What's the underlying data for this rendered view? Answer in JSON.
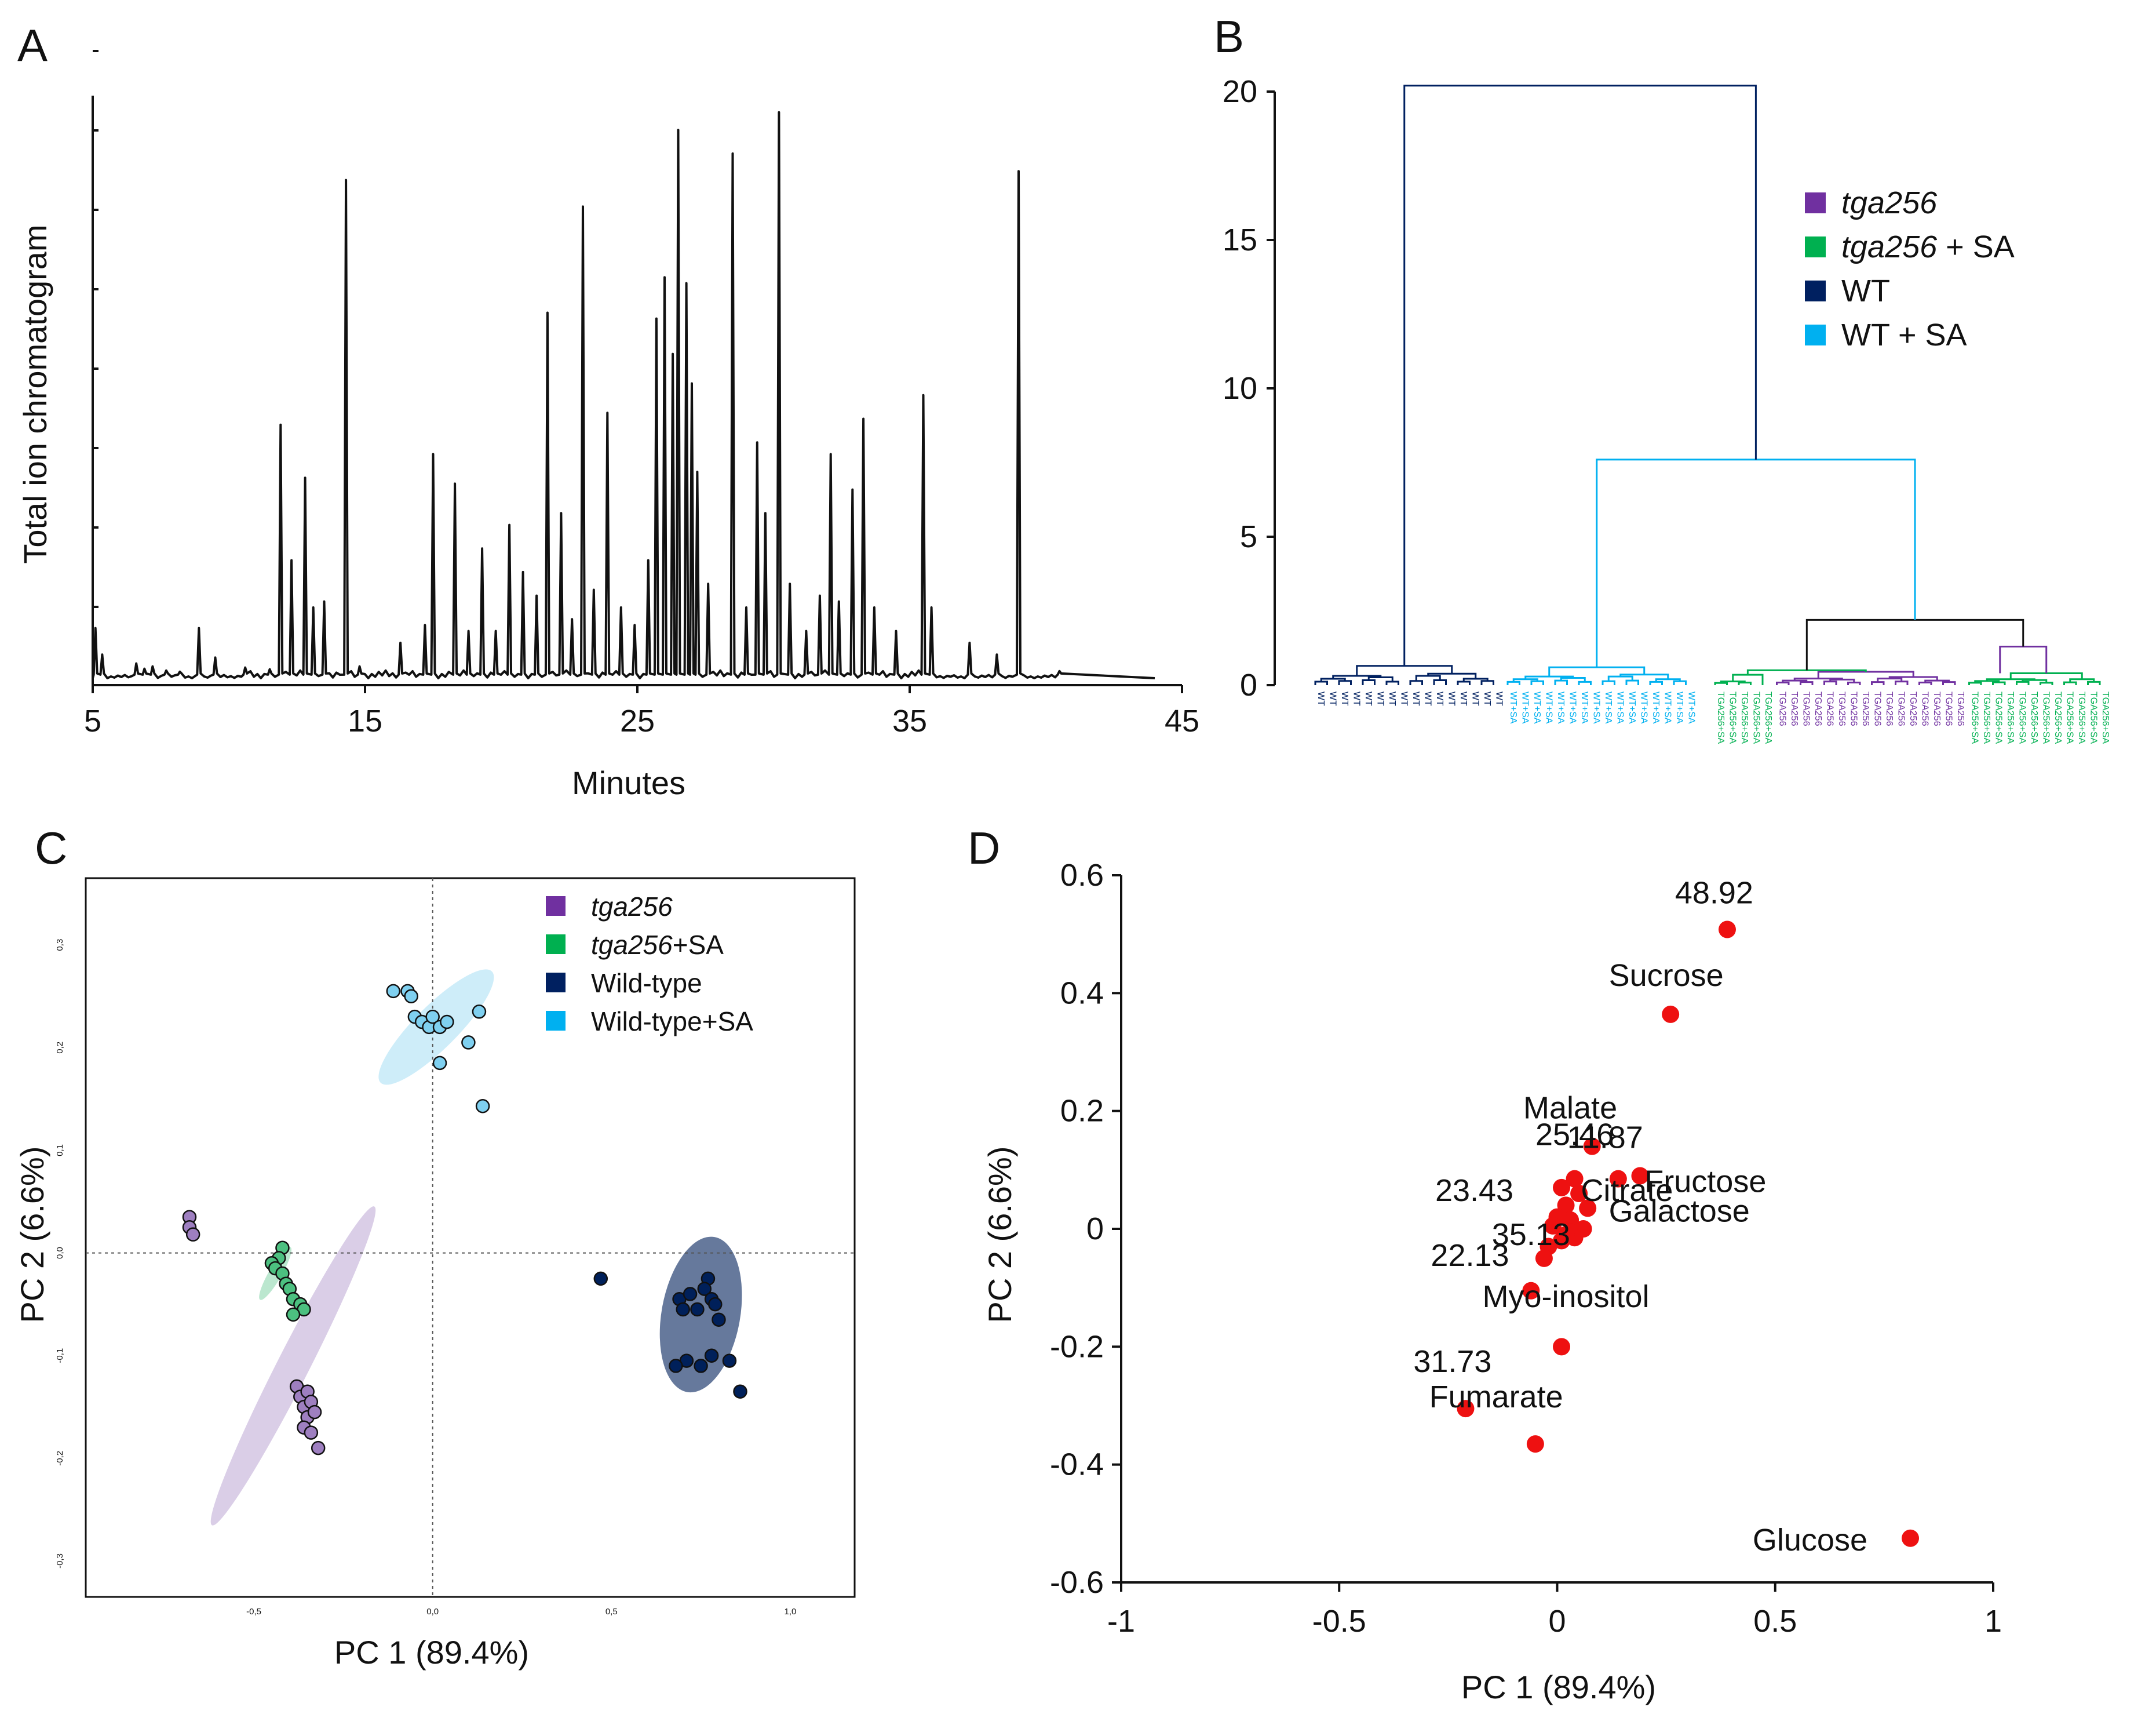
{
  "panels": {
    "A": {
      "label": "A",
      "xlabel": "Minutes",
      "ylabel": "Total ion chromatogram"
    },
    "B": {
      "label": "B"
    },
    "C": {
      "label": "C",
      "xlabel": "PC 1 (89.4%)",
      "ylabel": "PC 2 (6.6%)"
    },
    "D": {
      "label": "D",
      "xlabel": "PC 1 (89.4%)",
      "ylabel": "PC 2 (6.6%)"
    }
  },
  "chart_data": [
    {
      "panel": "A",
      "type": "line",
      "title": "",
      "xlabel": "Minutes",
      "ylabel": "Total ion chromatogram",
      "xlim": [
        5,
        45
      ],
      "x_ticks": [
        5,
        15,
        25,
        35,
        45
      ],
      "x_tick_labels": [
        "5",
        "15",
        "25",
        "35",
        "45"
      ],
      "y_ticks_count": 8,
      "baseline_end": 44,
      "peaks": [
        {
          "rt": 5.1,
          "h": 8.5
        },
        {
          "rt": 5.35,
          "h": 4
        },
        {
          "rt": 6.6,
          "h": 2.5
        },
        {
          "rt": 6.9,
          "h": 1.6
        },
        {
          "rt": 7.2,
          "h": 2.0
        },
        {
          "rt": 7.7,
          "h": 1.3
        },
        {
          "rt": 8.2,
          "h": 1.1
        },
        {
          "rt": 8.9,
          "h": 8.5
        },
        {
          "rt": 9.5,
          "h": 3.5
        },
        {
          "rt": 10.6,
          "h": 1.8
        },
        {
          "rt": 11.5,
          "h": 1.5
        },
        {
          "rt": 11.9,
          "h": 43
        },
        {
          "rt": 12.3,
          "h": 20
        },
        {
          "rt": 12.8,
          "h": 34
        },
        {
          "rt": 13.1,
          "h": 12
        },
        {
          "rt": 13.5,
          "h": 13
        },
        {
          "rt": 14.3,
          "h": 84.5
        },
        {
          "rt": 14.8,
          "h": 2
        },
        {
          "rt": 16.3,
          "h": 6
        },
        {
          "rt": 17.2,
          "h": 9
        },
        {
          "rt": 17.5,
          "h": 38
        },
        {
          "rt": 18.3,
          "h": 33
        },
        {
          "rt": 18.8,
          "h": 8
        },
        {
          "rt": 19.3,
          "h": 22
        },
        {
          "rt": 19.8,
          "h": 8
        },
        {
          "rt": 20.3,
          "h": 26
        },
        {
          "rt": 20.8,
          "h": 18
        },
        {
          "rt": 21.3,
          "h": 14
        },
        {
          "rt": 21.7,
          "h": 62
        },
        {
          "rt": 22.2,
          "h": 28
        },
        {
          "rt": 22.6,
          "h": 10
        },
        {
          "rt": 23.0,
          "h": 80
        },
        {
          "rt": 23.4,
          "h": 15
        },
        {
          "rt": 23.9,
          "h": 45
        },
        {
          "rt": 24.4,
          "h": 12
        },
        {
          "rt": 24.9,
          "h": 9
        },
        {
          "rt": 25.4,
          "h": 20
        },
        {
          "rt": 25.7,
          "h": 61
        },
        {
          "rt": 26.0,
          "h": 68
        },
        {
          "rt": 26.3,
          "h": 55
        },
        {
          "rt": 26.5,
          "h": 93
        },
        {
          "rt": 26.8,
          "h": 67
        },
        {
          "rt": 27.0,
          "h": 50
        },
        {
          "rt": 27.2,
          "h": 35
        },
        {
          "rt": 27.6,
          "h": 16
        },
        {
          "rt": 28.5,
          "h": 89
        },
        {
          "rt": 29.0,
          "h": 12
        },
        {
          "rt": 29.4,
          "h": 40
        },
        {
          "rt": 29.7,
          "h": 28
        },
        {
          "rt": 30.2,
          "h": 96
        },
        {
          "rt": 30.6,
          "h": 16
        },
        {
          "rt": 31.2,
          "h": 8
        },
        {
          "rt": 31.7,
          "h": 14
        },
        {
          "rt": 32.1,
          "h": 38
        },
        {
          "rt": 32.4,
          "h": 13
        },
        {
          "rt": 32.9,
          "h": 32
        },
        {
          "rt": 33.3,
          "h": 44
        },
        {
          "rt": 33.7,
          "h": 12
        },
        {
          "rt": 34.5,
          "h": 8
        },
        {
          "rt": 35.5,
          "h": 48
        },
        {
          "rt": 35.8,
          "h": 12
        },
        {
          "rt": 37.2,
          "h": 6
        },
        {
          "rt": 38.2,
          "h": 4
        },
        {
          "rt": 39.0,
          "h": 86
        },
        {
          "rt": 40.5,
          "h": 1.2
        }
      ]
    },
    {
      "panel": "B",
      "type": "dendrogram",
      "title": "",
      "ylim": [
        0,
        20
      ],
      "y_ticks": [
        0,
        5,
        10,
        15,
        20
      ],
      "legend_position": "top-right",
      "legend": [
        {
          "label": "tga256",
          "suffix": "",
          "italic": true,
          "color": "#7030a0"
        },
        {
          "label": "tga256",
          "suffix": " + SA",
          "italic": true,
          "color": "#00b050"
        },
        {
          "label": "WT",
          "suffix": "",
          "italic": false,
          "color": "#002060"
        },
        {
          "label": "WT + SA",
          "suffix": "",
          "italic": false,
          "color": "#00b0f0"
        }
      ],
      "merges": {
        "root": 20.2,
        "wtsa_vs_tga": 7.6,
        "tga_groups": 2.2,
        "tga256sa_sub": 1.3,
        "wt": 0.65,
        "wtsa": 0.6,
        "tga256": 0.55,
        "tga256sa": 0.5
      },
      "clusters": [
        {
          "group": "WT",
          "color": "#002060",
          "leaves": [
            "WT",
            "WT",
            "WT",
            "WT",
            "WT",
            "WT",
            "WT",
            "WT",
            "WT",
            "WT",
            "WT",
            "WT",
            "WT",
            "WT",
            "WT",
            "WT"
          ]
        },
        {
          "group": "WT + SA",
          "color": "#00b0f0",
          "leaves": [
            "WT+SA",
            "WT+SA",
            "WT+SA",
            "WT+SA",
            "WT+SA",
            "WT+SA",
            "WT+SA",
            "WT+SA",
            "WT+SA",
            "WT+SA",
            "WT+SA",
            "WT+SA",
            "WT+SA",
            "WT+SA",
            "WT+SA",
            "WT+SA"
          ]
        },
        {
          "group": "tga256 + SA",
          "color": "#00b050",
          "leaves": [
            "TGA256+SA",
            "TGA256+SA",
            "TGA256+SA",
            "TGA256+SA",
            "TGA256+SA"
          ]
        },
        {
          "group": "tga256",
          "color": "#7030a0",
          "leaves": [
            "TGA256",
            "TGA256",
            "TGA256",
            "TGA256",
            "TGA256",
            "TGA256",
            "TGA256",
            "TGA256",
            "TGA256",
            "TGA256",
            "TGA256",
            "TGA256",
            "TGA256",
            "TGA256",
            "TGA256",
            "TGA256"
          ]
        },
        {
          "group": "tga256 + SA",
          "color": "#00b050",
          "leaves": [
            "TGA256+SA",
            "TGA256+SA",
            "TGA256+SA",
            "TGA256+SA",
            "TGA256+SA",
            "TGA256+SA",
            "TGA256+SA",
            "TGA256+SA",
            "TGA256+SA",
            "TGA256+SA",
            "TGA256+SA",
            "TGA256+SA"
          ]
        }
      ]
    },
    {
      "panel": "C",
      "type": "scatter",
      "title": "",
      "xlabel": "PC 1 (89.4%)",
      "ylabel": "PC 2 (6.6%)",
      "xlim": [
        -0.97,
        1.18
      ],
      "ylim": [
        -0.335,
        0.365
      ],
      "x_ticks": [
        -0.5,
        0.0,
        0.5,
        1.0
      ],
      "x_tick_labels": [
        "-0,5",
        "0,0",
        "0,5",
        "1,0"
      ],
      "y_ticks": [
        -0.3,
        -0.2,
        -0.1,
        0.0,
        0.1,
        0.2,
        0.3
      ],
      "y_tick_labels": [
        "-0,3",
        "-0,2",
        "-0,1",
        "0,0",
        "0,1",
        "0,2",
        "0,3"
      ],
      "legend_position": "top-right",
      "legend": [
        {
          "label": "tga256",
          "suffix": "",
          "italic": true,
          "color": "#7030a0"
        },
        {
          "label": "tga256",
          "suffix": "+SA",
          "italic": true,
          "color": "#00b050"
        },
        {
          "label": "Wild-type",
          "suffix": "",
          "italic": false,
          "color": "#002060"
        },
        {
          "label": "Wild-type+SA",
          "suffix": "",
          "italic": false,
          "color": "#00b0f0"
        }
      ],
      "series": [
        {
          "name": "tga256",
          "color": "#9e7fc0",
          "ellipse": {
            "cx": -0.39,
            "cy": -0.11,
            "rx": 0.5,
            "ry": 0.045,
            "angle_deg": -63
          },
          "points": [
            [
              -0.68,
              0.035
            ],
            [
              -0.68,
              0.025
            ],
            [
              -0.67,
              0.018
            ],
            [
              -0.38,
              -0.13
            ],
            [
              -0.37,
              -0.14
            ],
            [
              -0.35,
              -0.135
            ],
            [
              -0.36,
              -0.15
            ],
            [
              -0.34,
              -0.145
            ],
            [
              -0.35,
              -0.16
            ],
            [
              -0.33,
              -0.155
            ],
            [
              -0.36,
              -0.17
            ],
            [
              -0.34,
              -0.175
            ],
            [
              -0.32,
              -0.19
            ]
          ]
        },
        {
          "name": "tga256+SA",
          "color": "#4cc080",
          "ellipse": {
            "cx": -0.44,
            "cy": -0.02,
            "rx": 0.085,
            "ry": 0.018,
            "angle_deg": -60
          },
          "points": [
            [
              -0.42,
              0.005
            ],
            [
              -0.43,
              -0.005
            ],
            [
              -0.45,
              -0.01
            ],
            [
              -0.44,
              -0.015
            ],
            [
              -0.42,
              -0.02
            ],
            [
              -0.41,
              -0.03
            ],
            [
              -0.4,
              -0.035
            ],
            [
              -0.39,
              -0.045
            ],
            [
              -0.37,
              -0.05
            ],
            [
              -0.36,
              -0.055
            ],
            [
              -0.39,
              -0.06
            ]
          ]
        },
        {
          "name": "Wild-type",
          "color": "#00205a",
          "ellipse": {
            "cx": 0.75,
            "cy": -0.06,
            "rx": 0.22,
            "ry": 0.11,
            "angle_deg": -80
          },
          "points": [
            [
              0.47,
              -0.025
            ],
            [
              0.69,
              -0.045
            ],
            [
              0.72,
              -0.04
            ],
            [
              0.77,
              -0.025
            ],
            [
              0.76,
              -0.035
            ],
            [
              0.78,
              -0.045
            ],
            [
              0.79,
              -0.05
            ],
            [
              0.74,
              -0.055
            ],
            [
              0.7,
              -0.055
            ],
            [
              0.8,
              -0.065
            ],
            [
              0.75,
              -0.11
            ],
            [
              0.71,
              -0.105
            ],
            [
              0.68,
              -0.11
            ],
            [
              0.78,
              -0.1
            ],
            [
              0.83,
              -0.105
            ],
            [
              0.86,
              -0.135
            ]
          ]
        },
        {
          "name": "Wild-type+SA",
          "color": "#7fd0f0",
          "ellipse": {
            "cx": 0.01,
            "cy": 0.22,
            "rx": 0.22,
            "ry": 0.06,
            "angle_deg": -45
          },
          "points": [
            [
              -0.11,
              0.255
            ],
            [
              -0.07,
              0.255
            ],
            [
              -0.06,
              0.25
            ],
            [
              -0.05,
              0.23
            ],
            [
              -0.03,
              0.225
            ],
            [
              -0.01,
              0.22
            ],
            [
              0.0,
              0.23
            ],
            [
              0.02,
              0.22
            ],
            [
              0.04,
              0.225
            ],
            [
              0.1,
              0.205
            ],
            [
              0.13,
              0.235
            ],
            [
              0.02,
              0.185
            ],
            [
              0.14,
              0.143
            ]
          ]
        }
      ]
    },
    {
      "panel": "D",
      "type": "scatter",
      "title": "",
      "xlabel": "PC 1 (89.4%)",
      "ylabel": "PC 2 (6.6%)",
      "xlim": [
        -1,
        1
      ],
      "ylim": [
        -0.6,
        0.6
      ],
      "x_ticks": [
        -1,
        -0.5,
        0,
        0.5,
        1
      ],
      "x_tick_labels": [
        "-1",
        "-0.5",
        "0",
        "0.5",
        "1"
      ],
      "y_ticks": [
        -0.6,
        -0.4,
        -0.2,
        0,
        0.2,
        0.4,
        0.6
      ],
      "y_tick_labels": [
        "-0.6",
        "-0.4",
        "-0.2",
        "0",
        "0.2",
        "0.4",
        "0.6"
      ],
      "color": "#ee1111",
      "points": [
        [
          0.39,
          0.508
        ],
        [
          0.26,
          0.364
        ],
        [
          0.08,
          0.14
        ],
        [
          0.19,
          0.09
        ],
        [
          0.14,
          0.085
        ],
        [
          0.04,
          0.085
        ],
        [
          0.05,
          0.06
        ],
        [
          0.01,
          0.07
        ],
        [
          0.07,
          0.035
        ],
        [
          0.02,
          0.04
        ],
        [
          0.0,
          0.02
        ],
        [
          0.03,
          0.015
        ],
        [
          0.06,
          0.0
        ],
        [
          -0.01,
          0.005
        ],
        [
          0.03,
          -0.005
        ],
        [
          0.04,
          -0.015
        ],
        [
          0.01,
          -0.02
        ],
        [
          -0.02,
          -0.03
        ],
        [
          0.02,
          -0.01
        ],
        [
          -0.03,
          -0.05
        ],
        [
          -0.06,
          -0.105
        ],
        [
          0.01,
          -0.2
        ],
        [
          -0.21,
          -0.305
        ],
        [
          -0.05,
          -0.365
        ],
        [
          0.81,
          -0.525
        ]
      ],
      "labels": [
        {
          "text": "48.92",
          "x": 0.36,
          "y": 0.57
        },
        {
          "text": "Sucrose",
          "x": 0.25,
          "y": 0.43
        },
        {
          "text": "Malate",
          "x": 0.03,
          "y": 0.205
        },
        {
          "text": "25.46",
          "x": 0.04,
          "y": 0.16
        },
        {
          "text": "11.87",
          "x": 0.11,
          "y": 0.155
        },
        {
          "text": "23.43",
          "x": -0.19,
          "y": 0.065
        },
        {
          "text": "Fructose",
          "x": 0.34,
          "y": 0.08
        },
        {
          "text": "Citrate",
          "x": 0.16,
          "y": 0.065
        },
        {
          "text": "Galactose",
          "x": 0.28,
          "y": 0.03
        },
        {
          "text": "35.13",
          "x": -0.06,
          "y": -0.01
        },
        {
          "text": "22.13",
          "x": -0.2,
          "y": -0.045
        },
        {
          "text": "Myo-inositol",
          "x": 0.02,
          "y": -0.115
        },
        {
          "text": "31.73",
          "x": -0.24,
          "y": -0.225
        },
        {
          "text": "Fumarate",
          "x": -0.14,
          "y": -0.285
        },
        {
          "text": "Glucose",
          "x": 0.58,
          "y": -0.528
        }
      ]
    }
  ]
}
